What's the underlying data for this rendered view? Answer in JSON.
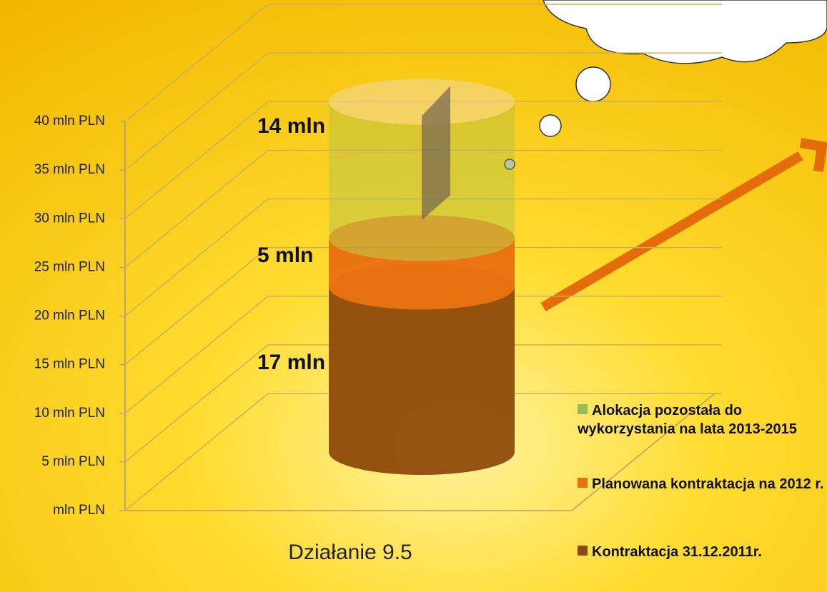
{
  "chart_data": {
    "type": "stacked-cylinder",
    "categories": [
      "Działanie 9.5"
    ],
    "series": [
      {
        "name": "Kontraktacja 31.12.2011r.",
        "color": "#8e4a0c",
        "values": [
          17
        ],
        "value_labels": [
          "17 mln"
        ]
      },
      {
        "name": "Planowana kontraktacja na 2012 r.",
        "color": "#e8700f",
        "values": [
          5
        ],
        "value_labels": [
          "5 mln"
        ]
      },
      {
        "name": "Alokacja pozostała do wykorzystania na lata 2013-2015",
        "color": "#9bbb59",
        "values": [
          14
        ],
        "value_labels": [
          "14 mln"
        ]
      }
    ],
    "ylim": [
      0,
      40
    ],
    "yticks": [
      {
        "value": 0,
        "label": "mln PLN"
      },
      {
        "value": 5,
        "label": "5 mln PLN"
      },
      {
        "value": 10,
        "label": "10 mln PLN"
      },
      {
        "value": 15,
        "label": "15 mln PLN"
      },
      {
        "value": 20,
        "label": "20 mln PLN"
      },
      {
        "value": 25,
        "label": "25 mln PLN"
      },
      {
        "value": 30,
        "label": "30 mln PLN"
      },
      {
        "value": 35,
        "label": "35 mln PLN"
      },
      {
        "value": 40,
        "label": "40 mln PLN"
      }
    ],
    "grid": true
  }
}
